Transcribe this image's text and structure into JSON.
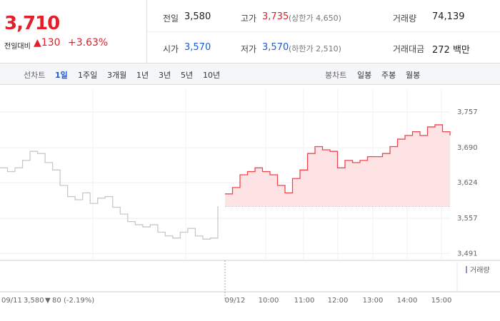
{
  "header": {
    "price": "3,710",
    "change_label": "전일대비",
    "change": "130",
    "change_pct": "+3.63%"
  },
  "stats": [
    {
      "label": "전일",
      "value": "3,580"
    },
    {
      "label": "고가",
      "value": "3,735",
      "note": "(상한가 4,650)"
    },
    {
      "label": "거래량",
      "value": "74,139"
    },
    {
      "label": "시가",
      "value": "3,570"
    },
    {
      "label": "저가",
      "value": "3,570",
      "note": "(하한가 2,510)"
    },
    {
      "label": "거래대금",
      "value": "272 백만"
    }
  ],
  "tabs": {
    "line_label": "선차트",
    "line": [
      "1일",
      "1주일",
      "3개월",
      "1년",
      "3년",
      "5년",
      "10년"
    ],
    "selected": "1일",
    "candle_label": "봉차트",
    "candle": [
      "일봉",
      "주봉",
      "월봉"
    ]
  },
  "chart_data": {
    "type": "line",
    "ylim": [
      3478,
      3800
    ],
    "yticks": [
      {
        "value": 3757,
        "label": "3,757"
      },
      {
        "value": 3690,
        "label": "3,690"
      },
      {
        "value": 3624,
        "label": "3,624"
      },
      {
        "value": 3557,
        "label": "3,557"
      },
      {
        "value": 3491,
        "label": "3,491"
      }
    ],
    "base": 3580,
    "series": [
      {
        "color": "#c8c8c8",
        "values": [
          3652,
          3645,
          3652,
          3666,
          3683,
          3679,
          3662,
          3648,
          3619,
          3598,
          3592,
          3605,
          3585,
          3595,
          3598,
          3578,
          3565,
          3551,
          3545,
          3541,
          3545,
          3531,
          3524,
          3520,
          3531,
          3538,
          3524,
          3518,
          3520,
          3580
        ]
      },
      {
        "color": "#f0454f",
        "values": [
          3603,
          3615,
          3639,
          3645,
          3652,
          3645,
          3639,
          3619,
          3605,
          3632,
          3648,
          3679,
          3692,
          3686,
          3683,
          3652,
          3666,
          3662,
          3666,
          3673,
          3673,
          3679,
          3692,
          3706,
          3713,
          3720,
          3713,
          3729,
          3733,
          3720,
          3713
        ]
      }
    ],
    "x_labels": [
      "09/12",
      "10:00",
      "11:00",
      "12:00",
      "13:00",
      "14:00",
      "15:00"
    ],
    "legend": "거래량",
    "prev": {
      "date": "09/11",
      "close": "3,580",
      "change": "80",
      "pct": "(-2.19%)"
    }
  }
}
